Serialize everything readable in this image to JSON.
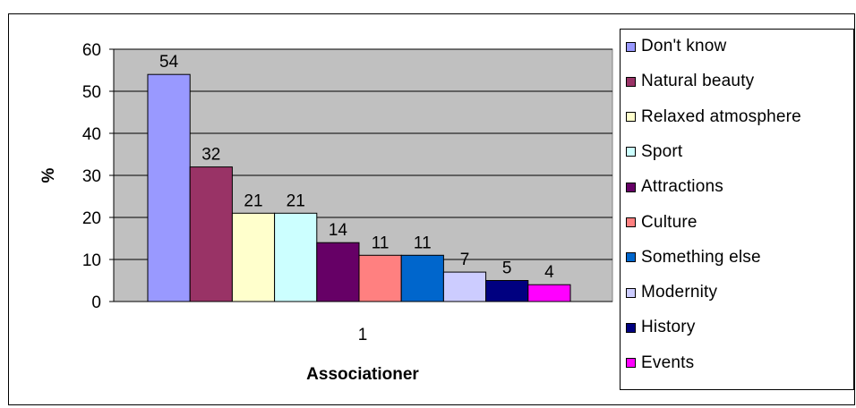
{
  "chart_data": {
    "type": "bar",
    "categories": [
      "1"
    ],
    "series": [
      {
        "name": "Don't know",
        "values": [
          54
        ],
        "color": "#9999FF"
      },
      {
        "name": "Natural beauty",
        "values": [
          32
        ],
        "color": "#993366"
      },
      {
        "name": "Relaxed atmosphere",
        "values": [
          21
        ],
        "color": "#FFFFCC"
      },
      {
        "name": "Sport",
        "values": [
          21
        ],
        "color": "#CCFFFF"
      },
      {
        "name": "Attractions",
        "values": [
          14
        ],
        "color": "#660066"
      },
      {
        "name": "Culture",
        "values": [
          11
        ],
        "color": "#FF8080"
      },
      {
        "name": "Something else",
        "values": [
          11
        ],
        "color": "#0066CC"
      },
      {
        "name": "Modernity",
        "values": [
          7
        ],
        "color": "#CCCCFF"
      },
      {
        "name": "History",
        "values": [
          5
        ],
        "color": "#000080"
      },
      {
        "name": "Events",
        "values": [
          4
        ],
        "color": "#FF00FF"
      }
    ],
    "xlabel": "Associationer",
    "ylabel": "%",
    "ylim": [
      0,
      60
    ],
    "yticks": [
      "0",
      "10",
      "20",
      "30",
      "40",
      "50",
      "60"
    ],
    "grid": true,
    "legend_position": "right",
    "plot_background": "#C0C0C0"
  }
}
